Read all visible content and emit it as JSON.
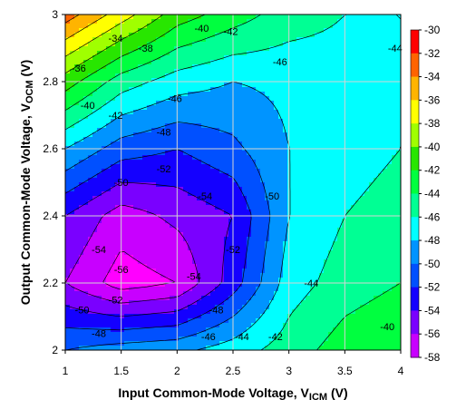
{
  "chart_data": {
    "type": "heatmap",
    "subtype": "filled-contour",
    "title": "",
    "xlabel": "Input Common-Mode Voltage, V",
    "xlabel_sub": "ICM",
    "xlabel_unit": " (V)",
    "ylabel": "Output Common-Mode Voltage, V",
    "ylabel_sub": "OCM",
    "ylabel_unit": " (V)",
    "xlim": [
      1,
      4
    ],
    "ylim": [
      2,
      3
    ],
    "x_ticks": [
      "1",
      "1.5",
      "2",
      "2.5",
      "3",
      "3.5",
      "4"
    ],
    "y_ticks": [
      "2",
      "2.2",
      "2.4",
      "2.6",
      "2.8",
      "3"
    ],
    "grid": true,
    "x": [
      1,
      1.5,
      2,
      2.5,
      3,
      3.5,
      4
    ],
    "y": [
      2.0,
      2.2,
      2.4,
      2.6,
      2.8,
      3.0
    ],
    "z": [
      [
        -48,
        -47,
        -46.5,
        -45,
        -43,
        -41,
        -40
      ],
      [
        -54,
        -57,
        -56,
        -51,
        -45,
        -43,
        -42
      ],
      [
        -52,
        -55,
        -53.5,
        -52,
        -46,
        -44,
        -43
      ],
      [
        -46,
        -49,
        -50,
        -48.5,
        -46,
        -45,
        -44
      ],
      [
        -39,
        -43,
        -45,
        -46,
        -45.5,
        -45,
        -44
      ],
      [
        -31,
        -35,
        -39,
        -41,
        -43,
        -44,
        -44
      ]
    ],
    "levels": [
      -58,
      -56,
      -54,
      -52,
      -50,
      -48,
      -46,
      -44,
      -42,
      -40,
      -38,
      -36,
      -34,
      -32,
      -30
    ],
    "level_colors": [
      "#ff00ff",
      "#c800ff",
      "#7a00ff",
      "#1400ff",
      "#0050ff",
      "#0094ff",
      "#00ffff",
      "#00ff94",
      "#00ff3f",
      "#28e600",
      "#a0ff00",
      "#ffff00",
      "#ffb400",
      "#ff6400",
      "#ff0000"
    ],
    "legend_labels": [
      "-30",
      "-32",
      "-34",
      "-36",
      "-38",
      "-40",
      "-42",
      "-44",
      "-46",
      "-48",
      "-50",
      "-52",
      "-54",
      "-56",
      "-58"
    ],
    "legend_position": "right",
    "contour_labels": [
      {
        "text": "-34",
        "x": 1.45,
        "y": 2.93
      },
      {
        "text": "-36",
        "x": 1.12,
        "y": 2.84
      },
      {
        "text": "-38",
        "x": 1.72,
        "y": 2.9
      },
      {
        "text": "-40",
        "x": 1.2,
        "y": 2.73
      },
      {
        "text": "-40",
        "x": 2.22,
        "y": 2.96
      },
      {
        "text": "-42",
        "x": 1.45,
        "y": 2.7
      },
      {
        "text": "-42",
        "x": 2.48,
        "y": 2.95
      },
      {
        "text": "-44",
        "x": 3.95,
        "y": 2.9
      },
      {
        "text": "-46",
        "x": 2.92,
        "y": 2.86
      },
      {
        "text": "-46",
        "x": 1.98,
        "y": 2.75
      },
      {
        "text": "-48",
        "x": 1.88,
        "y": 2.65
      },
      {
        "text": "-50",
        "x": 1.5,
        "y": 2.5
      },
      {
        "text": "-52",
        "x": 1.88,
        "y": 2.54
      },
      {
        "text": "-54",
        "x": 2.25,
        "y": 2.46
      },
      {
        "text": "-54",
        "x": 1.3,
        "y": 2.3
      },
      {
        "text": "-56",
        "x": 1.5,
        "y": 2.24
      },
      {
        "text": "-54",
        "x": 2.15,
        "y": 2.22
      },
      {
        "text": "-52",
        "x": 1.45,
        "y": 2.15
      },
      {
        "text": "-52",
        "x": 2.5,
        "y": 2.3
      },
      {
        "text": "-50",
        "x": 2.85,
        "y": 2.46
      },
      {
        "text": "-50",
        "x": 1.15,
        "y": 2.12
      },
      {
        "text": "-48",
        "x": 1.3,
        "y": 2.05
      },
      {
        "text": "-48",
        "x": 2.35,
        "y": 2.12
      },
      {
        "text": "-46",
        "x": 2.28,
        "y": 2.04
      },
      {
        "text": "-44",
        "x": 2.58,
        "y": 2.04
      },
      {
        "text": "-44",
        "x": 3.2,
        "y": 2.2
      },
      {
        "text": "-42",
        "x": 2.88,
        "y": 2.04
      },
      {
        "text": "-40",
        "x": 3.88,
        "y": 2.07
      }
    ]
  }
}
